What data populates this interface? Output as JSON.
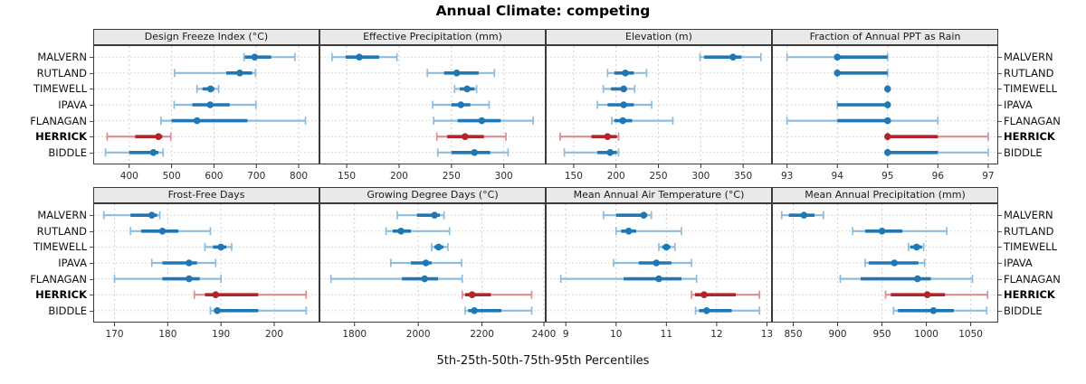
{
  "figure": {
    "title": "Annual Climate: competing",
    "caption": "5th-25th-50th-75th-95th Percentiles"
  },
  "sites": [
    "MALVERN",
    "RUTLAND",
    "TIMEWELL",
    "IPAVA",
    "FLANAGAN",
    "HERRICK",
    "BIDDLE"
  ],
  "highlight_site": "HERRICK",
  "percentile_levels": [
    5,
    25,
    50,
    75,
    95
  ],
  "colors": {
    "series_blue": "#1F77B4",
    "series_blue_light": "#8FBCDB",
    "highlight_red": "#B2232A",
    "highlight_red_light": "#D98E91",
    "strip_bg": "#E9E9E9",
    "grid": "#CFCFCF",
    "panel_border": "#3A3A3A"
  },
  "chart_data": [
    {
      "type": "dotplot-percentiles",
      "title": "Design Freeze Index (°C)",
      "xlim": [
        315,
        849
      ],
      "ticks": [
        400,
        500,
        600,
        700,
        800
      ],
      "series": [
        {
          "name": "MALVERN",
          "values": [
            671,
            673,
            696,
            735,
            791
          ]
        },
        {
          "name": "RUTLAND",
          "values": [
            507,
            629,
            661,
            690,
            698
          ]
        },
        {
          "name": "TIMEWELL",
          "values": [
            560,
            573,
            592,
            601,
            611
          ]
        },
        {
          "name": "IPAVA",
          "values": [
            506,
            549,
            591,
            637,
            699
          ]
        },
        {
          "name": "FLANAGAN",
          "values": [
            475,
            500,
            560,
            679,
            816
          ]
        },
        {
          "name": "HERRICK",
          "values": [
            348,
            414,
            469,
            478,
            498
          ]
        },
        {
          "name": "BIDDLE",
          "values": [
            344,
            400,
            457,
            469,
            480
          ]
        }
      ]
    },
    {
      "type": "dotplot-percentiles",
      "title": "Effective Precipitation (mm)",
      "xlim": [
        124,
        340
      ],
      "ticks": [
        150,
        200,
        250,
        300
      ],
      "series": [
        {
          "name": "MALVERN",
          "values": [
            136,
            149,
            162,
            181,
            198
          ]
        },
        {
          "name": "RUTLAND",
          "values": [
            227,
            243,
            255,
            276,
            291
          ]
        },
        {
          "name": "TIMEWELL",
          "values": [
            253,
            258,
            265,
            272,
            274
          ]
        },
        {
          "name": "IPAVA",
          "values": [
            232,
            250,
            259,
            268,
            286
          ]
        },
        {
          "name": "FLANAGAN",
          "values": [
            233,
            256,
            279,
            297,
            328
          ]
        },
        {
          "name": "HERRICK",
          "values": [
            236,
            246,
            263,
            281,
            302
          ]
        },
        {
          "name": "BIDDLE",
          "values": [
            237,
            250,
            272,
            287,
            304
          ]
        }
      ]
    },
    {
      "type": "dotplot-percentiles",
      "title": "Elevation (m)",
      "xlim": [
        117,
        384
      ],
      "ticks": [
        150,
        200,
        250,
        300,
        350
      ],
      "series": [
        {
          "name": "MALVERN",
          "values": [
            299,
            304,
            338,
            348,
            371
          ]
        },
        {
          "name": "RUTLAND",
          "values": [
            190,
            198,
            211,
            221,
            236
          ]
        },
        {
          "name": "TIMEWELL",
          "values": [
            185,
            194,
            209,
            212,
            222
          ]
        },
        {
          "name": "IPAVA",
          "values": [
            178,
            190,
            209,
            221,
            242
          ]
        },
        {
          "name": "FLANAGAN",
          "values": [
            195,
            198,
            208,
            219,
            267
          ]
        },
        {
          "name": "HERRICK",
          "values": [
            134,
            171,
            190,
            201,
            203
          ]
        },
        {
          "name": "BIDDLE",
          "values": [
            139,
            178,
            193,
            201,
            203
          ]
        }
      ]
    },
    {
      "type": "dotplot-percentiles",
      "title": "Fraction of Annual PPT as Rain",
      "xlim": [
        92.7,
        97.2
      ],
      "ticks": [
        93,
        94,
        95,
        96,
        97
      ],
      "series": [
        {
          "name": "MALVERN",
          "values": [
            93,
            94,
            94,
            95,
            95
          ]
        },
        {
          "name": "RUTLAND",
          "values": [
            94,
            94,
            94,
            95,
            95
          ]
        },
        {
          "name": "TIMEWELL",
          "values": [
            95,
            95,
            95,
            95,
            95
          ]
        },
        {
          "name": "IPAVA",
          "values": [
            94,
            94,
            95,
            95,
            95
          ]
        },
        {
          "name": "FLANAGAN",
          "values": [
            93,
            94,
            95,
            95,
            96
          ]
        },
        {
          "name": "HERRICK",
          "values": [
            95,
            95,
            95,
            96,
            97
          ]
        },
        {
          "name": "BIDDLE",
          "values": [
            95,
            95,
            95,
            96,
            97
          ]
        }
      ]
    },
    {
      "type": "dotplot-percentiles",
      "title": "Frost-Free Days",
      "xlim": [
        166,
        208.5
      ],
      "ticks": [
        170,
        180,
        190,
        200
      ],
      "series": [
        {
          "name": "MALVERN",
          "values": [
            168,
            173,
            177,
            178,
            178.5
          ]
        },
        {
          "name": "RUTLAND",
          "values": [
            173,
            175,
            179,
            182,
            188
          ]
        },
        {
          "name": "TIMEWELL",
          "values": [
            187,
            188.5,
            190,
            191,
            192
          ]
        },
        {
          "name": "IPAVA",
          "values": [
            177,
            179,
            184,
            185.5,
            189
          ]
        },
        {
          "name": "FLANAGAN",
          "values": [
            170,
            179,
            184,
            186,
            190
          ]
        },
        {
          "name": "HERRICK",
          "values": [
            185,
            187,
            189,
            197,
            206
          ]
        },
        {
          "name": "BIDDLE",
          "values": [
            188,
            188.7,
            189.3,
            197,
            206
          ]
        }
      ]
    },
    {
      "type": "dotplot-percentiles",
      "title": "Growing Degree Days (°C)",
      "xlim": [
        1690,
        2400
      ],
      "ticks": [
        1800,
        2000,
        2200,
        2400
      ],
      "series": [
        {
          "name": "MALVERN",
          "values": [
            1934,
            1996,
            2051,
            2068,
            2081
          ]
        },
        {
          "name": "RUTLAND",
          "values": [
            1899,
            1920,
            1946,
            1977,
            2098
          ]
        },
        {
          "name": "TIMEWELL",
          "values": [
            2042,
            2051,
            2064,
            2079,
            2093
          ]
        },
        {
          "name": "IPAVA",
          "values": [
            1914,
            1977,
            2024,
            2042,
            2136
          ]
        },
        {
          "name": "FLANAGAN",
          "values": [
            1726,
            1949,
            2020,
            2062,
            2138
          ]
        },
        {
          "name": "HERRICK",
          "values": [
            2138,
            2147,
            2169,
            2228,
            2356
          ]
        },
        {
          "name": "BIDDLE",
          "values": [
            2147,
            2157,
            2176,
            2261,
            2356
          ]
        }
      ]
    },
    {
      "type": "dotplot-percentiles",
      "title": "Mean Annual Air Temperature (°C)",
      "xlim": [
        8.6,
        13.1
      ],
      "ticks": [
        9,
        10,
        11,
        12,
        13
      ],
      "series": [
        {
          "name": "MALVERN",
          "values": [
            9.75,
            10.0,
            10.55,
            10.62,
            10.7
          ]
        },
        {
          "name": "RUTLAND",
          "values": [
            10.0,
            10.1,
            10.25,
            10.4,
            11.3
          ]
        },
        {
          "name": "TIMEWELL",
          "values": [
            10.85,
            10.92,
            11.0,
            11.08,
            11.17
          ]
        },
        {
          "name": "IPAVA",
          "values": [
            9.95,
            10.45,
            10.8,
            11.1,
            11.5
          ]
        },
        {
          "name": "FLANAGAN",
          "values": [
            8.9,
            10.15,
            10.85,
            11.3,
            11.6
          ]
        },
        {
          "name": "HERRICK",
          "values": [
            11.5,
            11.57,
            11.75,
            12.38,
            12.85
          ]
        },
        {
          "name": "BIDDLE",
          "values": [
            11.58,
            11.65,
            11.8,
            12.3,
            12.85
          ]
        }
      ]
    },
    {
      "type": "dotplot-percentiles",
      "title": "Mean Annual Precipitation (mm)",
      "xlim": [
        826,
        1081
      ],
      "ticks": [
        850,
        900,
        950,
        1000,
        1050
      ],
      "series": [
        {
          "name": "MALVERN",
          "values": [
            837,
            845,
            862,
            874,
            884
          ]
        },
        {
          "name": "RUTLAND",
          "values": [
            917,
            931,
            950,
            973,
            1023
          ]
        },
        {
          "name": "TIMEWELL",
          "values": [
            980,
            982,
            989,
            995,
            997
          ]
        },
        {
          "name": "IPAVA",
          "values": [
            931,
            935,
            964,
            991,
            998
          ]
        },
        {
          "name": "FLANAGAN",
          "values": [
            903,
            926,
            990,
            1005,
            1052
          ]
        },
        {
          "name": "HERRICK",
          "values": [
            954,
            960,
            1001,
            1021,
            1069
          ]
        },
        {
          "name": "BIDDLE",
          "values": [
            963,
            968,
            1008,
            1031,
            1068
          ]
        }
      ]
    }
  ]
}
